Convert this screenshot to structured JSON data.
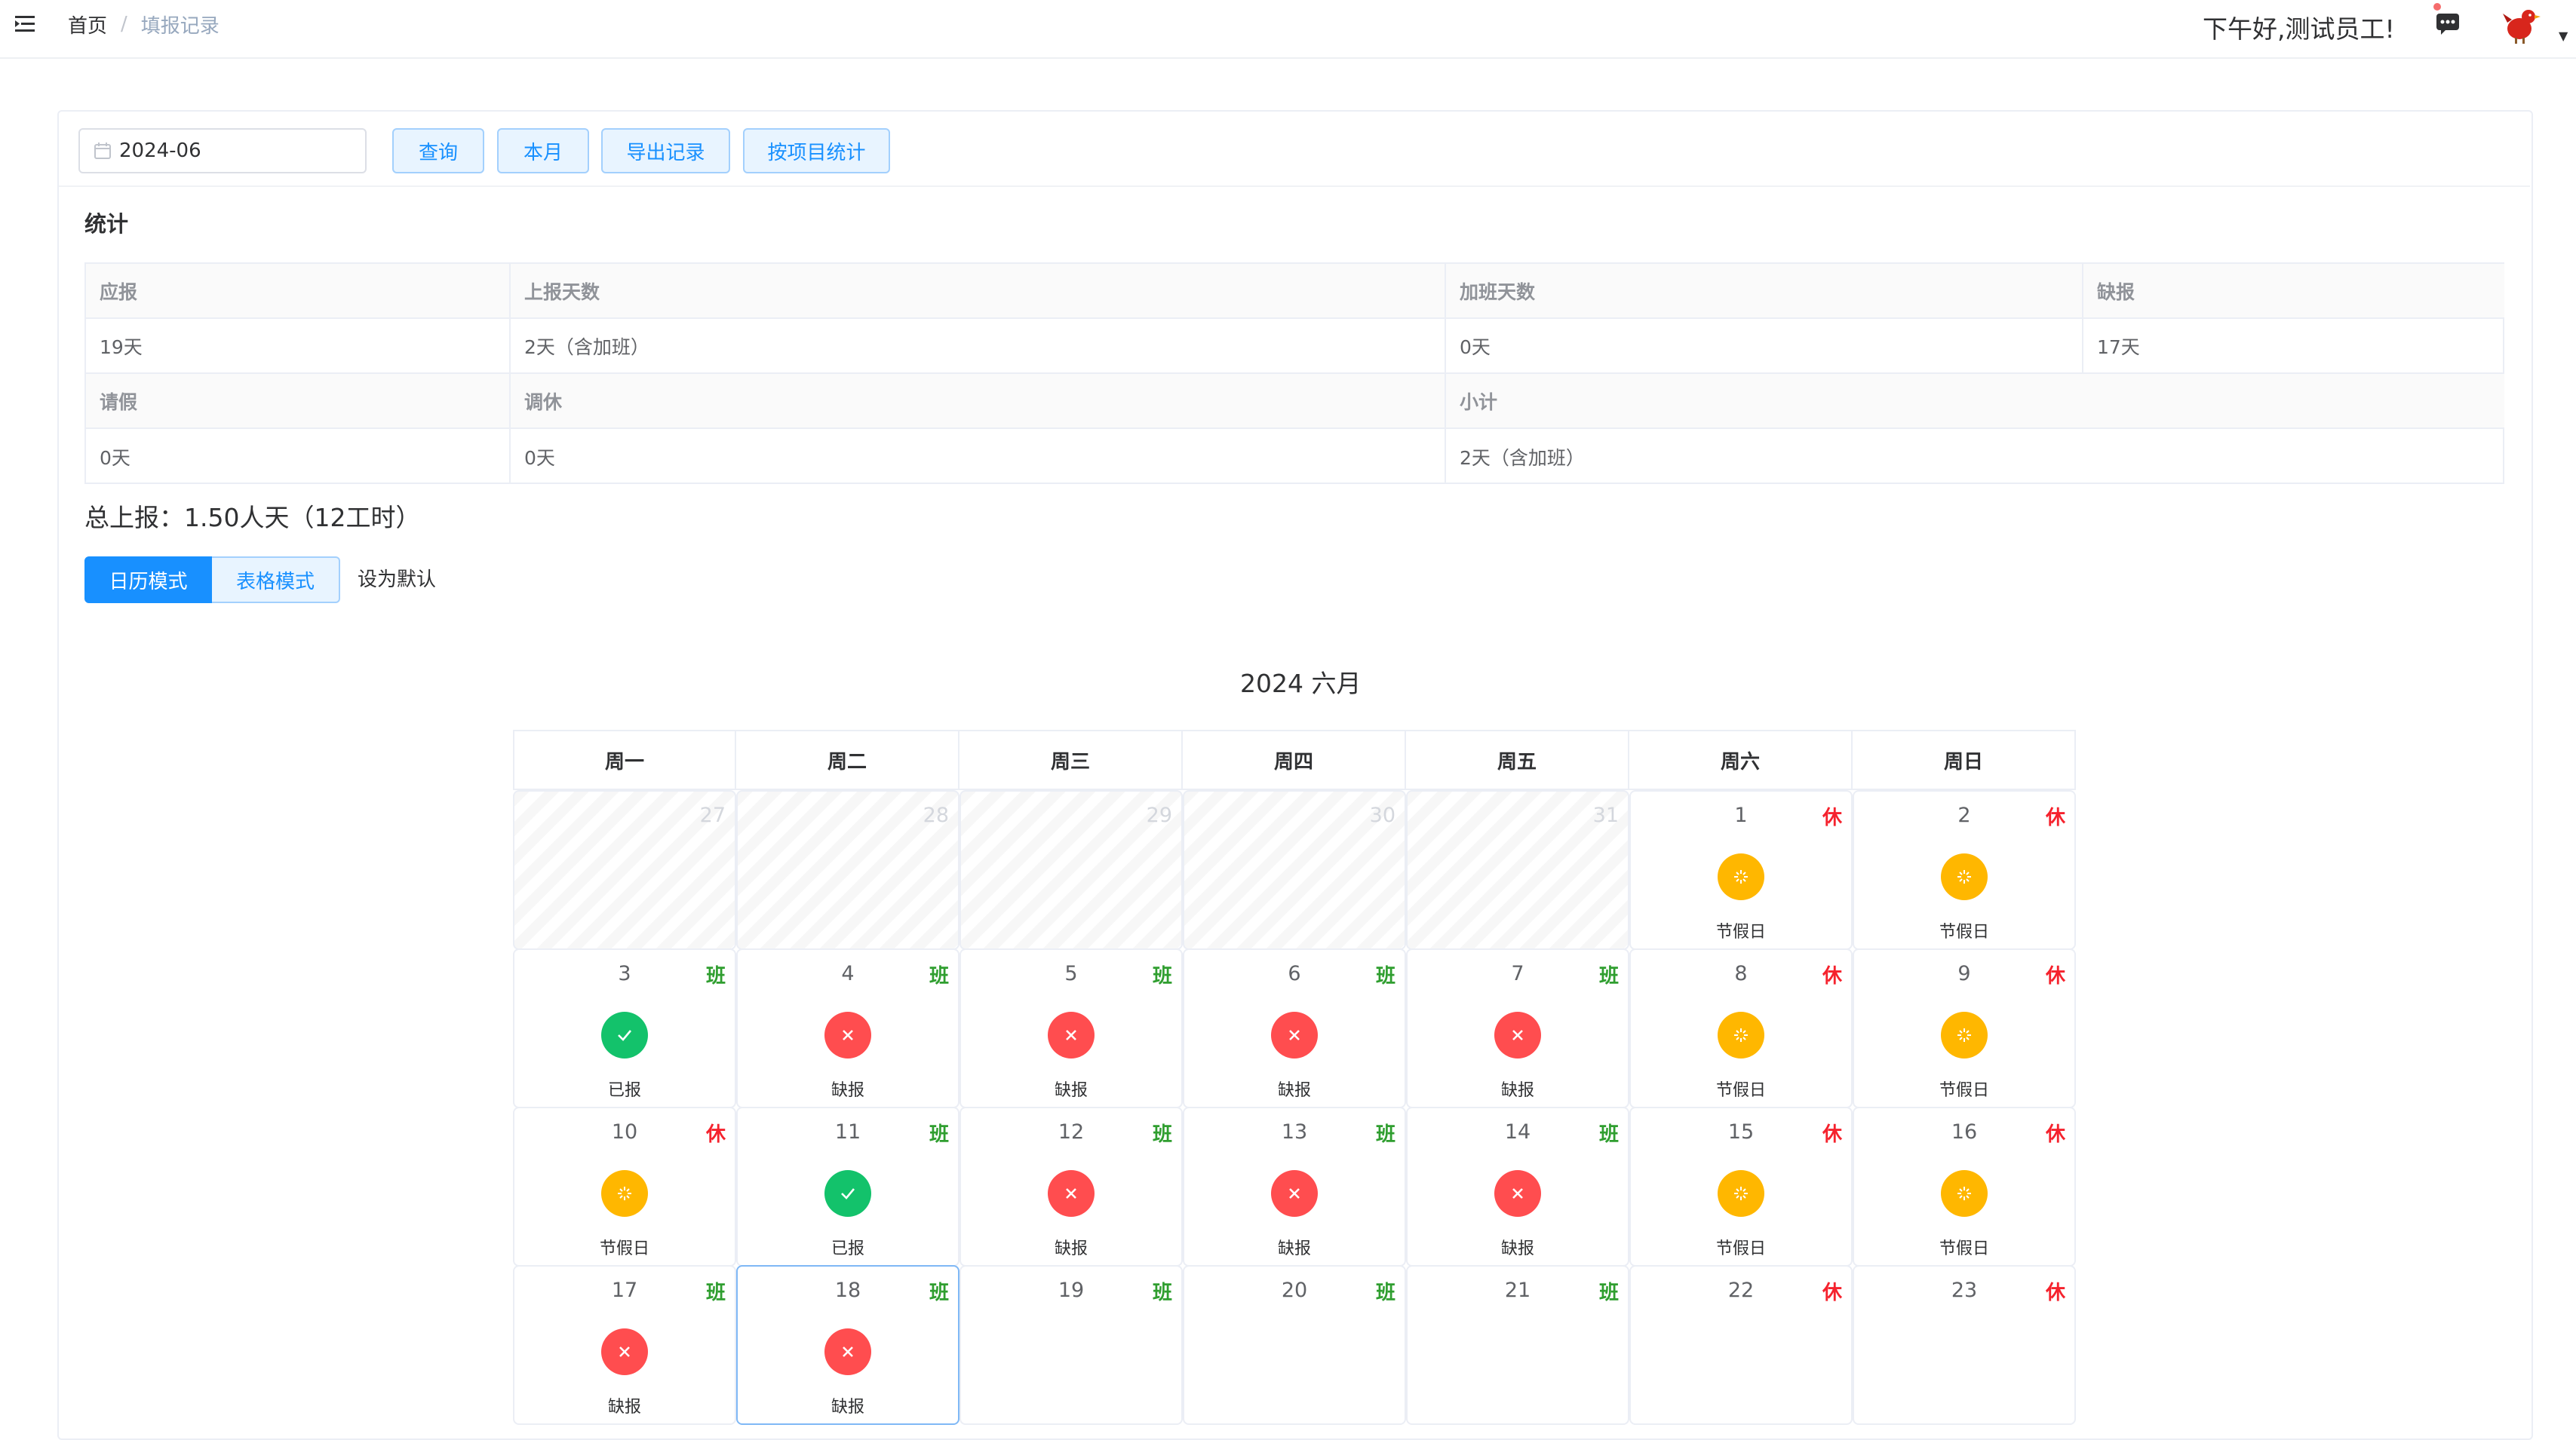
{
  "header": {
    "breadcrumb_home": "首页",
    "breadcrumb_sep": "/",
    "breadcrumb_current": "填报记录",
    "greeting": "下午好,测试员工!",
    "menu_icon": "menu-fold-icon",
    "message_icon": "message-icon",
    "accent": "#1890ff"
  },
  "search": {
    "date_value": "2024-06",
    "query_label": "查询",
    "month_label": "本月",
    "export_label": "导出记录",
    "by_project_label": "按项目统计"
  },
  "stats": {
    "title": "统计",
    "labels": [
      "应报",
      "上报天数",
      "加班天数",
      "缺报",
      "请假",
      "调休",
      "小计"
    ],
    "values": [
      "19天",
      "2天（含加班）",
      "0天",
      "17天",
      "0天",
      "0天",
      "2天（含加班）"
    ]
  },
  "total": {
    "label": "总上报：",
    "value": "1.50人天（12工时）"
  },
  "mode": {
    "calendar_label": "日历模式",
    "table_label": "表格模式",
    "set_default_label": "设为默认"
  },
  "calendar": {
    "title": "2024 六月",
    "weekdays": [
      "周一",
      "周二",
      "周三",
      "周四",
      "周五",
      "周六",
      "周日"
    ],
    "colors": {
      "work_tag": "#2f9e2f",
      "rest_tag": "#f5222d",
      "reported": "#13c26b",
      "missing": "#ff4d4f",
      "holiday": "#ffb700"
    },
    "days": [
      {
        "num": "27",
        "other_month": true
      },
      {
        "num": "28",
        "other_month": true
      },
      {
        "num": "29",
        "other_month": true
      },
      {
        "num": "30",
        "other_month": true
      },
      {
        "num": "31",
        "other_month": true
      },
      {
        "num": "1",
        "tag": "休",
        "status": "holiday",
        "status_label": "节假日"
      },
      {
        "num": "2",
        "tag": "休",
        "status": "holiday",
        "status_label": "节假日"
      },
      {
        "num": "3",
        "tag": "班",
        "status": "reported",
        "status_label": "已报"
      },
      {
        "num": "4",
        "tag": "班",
        "status": "missing",
        "status_label": "缺报"
      },
      {
        "num": "5",
        "tag": "班",
        "status": "missing",
        "status_label": "缺报"
      },
      {
        "num": "6",
        "tag": "班",
        "status": "missing",
        "status_label": "缺报"
      },
      {
        "num": "7",
        "tag": "班",
        "status": "missing",
        "status_label": "缺报"
      },
      {
        "num": "8",
        "tag": "休",
        "status": "holiday",
        "status_label": "节假日"
      },
      {
        "num": "9",
        "tag": "休",
        "status": "holiday",
        "status_label": "节假日"
      },
      {
        "num": "10",
        "tag": "休",
        "status": "holiday",
        "status_label": "节假日"
      },
      {
        "num": "11",
        "tag": "班",
        "status": "reported",
        "status_label": "已报"
      },
      {
        "num": "12",
        "tag": "班",
        "status": "missing",
        "status_label": "缺报"
      },
      {
        "num": "13",
        "tag": "班",
        "status": "missing",
        "status_label": "缺报"
      },
      {
        "num": "14",
        "tag": "班",
        "status": "missing",
        "status_label": "缺报"
      },
      {
        "num": "15",
        "tag": "休",
        "status": "holiday",
        "status_label": "节假日"
      },
      {
        "num": "16",
        "tag": "休",
        "status": "holiday",
        "status_label": "节假日"
      },
      {
        "num": "17",
        "tag": "班",
        "status": "missing",
        "status_label": "缺报"
      },
      {
        "num": "18",
        "tag": "班",
        "status": "missing",
        "status_label": "缺报",
        "selected": true
      },
      {
        "num": "19",
        "tag": "班"
      },
      {
        "num": "20",
        "tag": "班"
      },
      {
        "num": "21",
        "tag": "班"
      },
      {
        "num": "22",
        "tag": "休"
      },
      {
        "num": "23",
        "tag": "休"
      }
    ]
  }
}
